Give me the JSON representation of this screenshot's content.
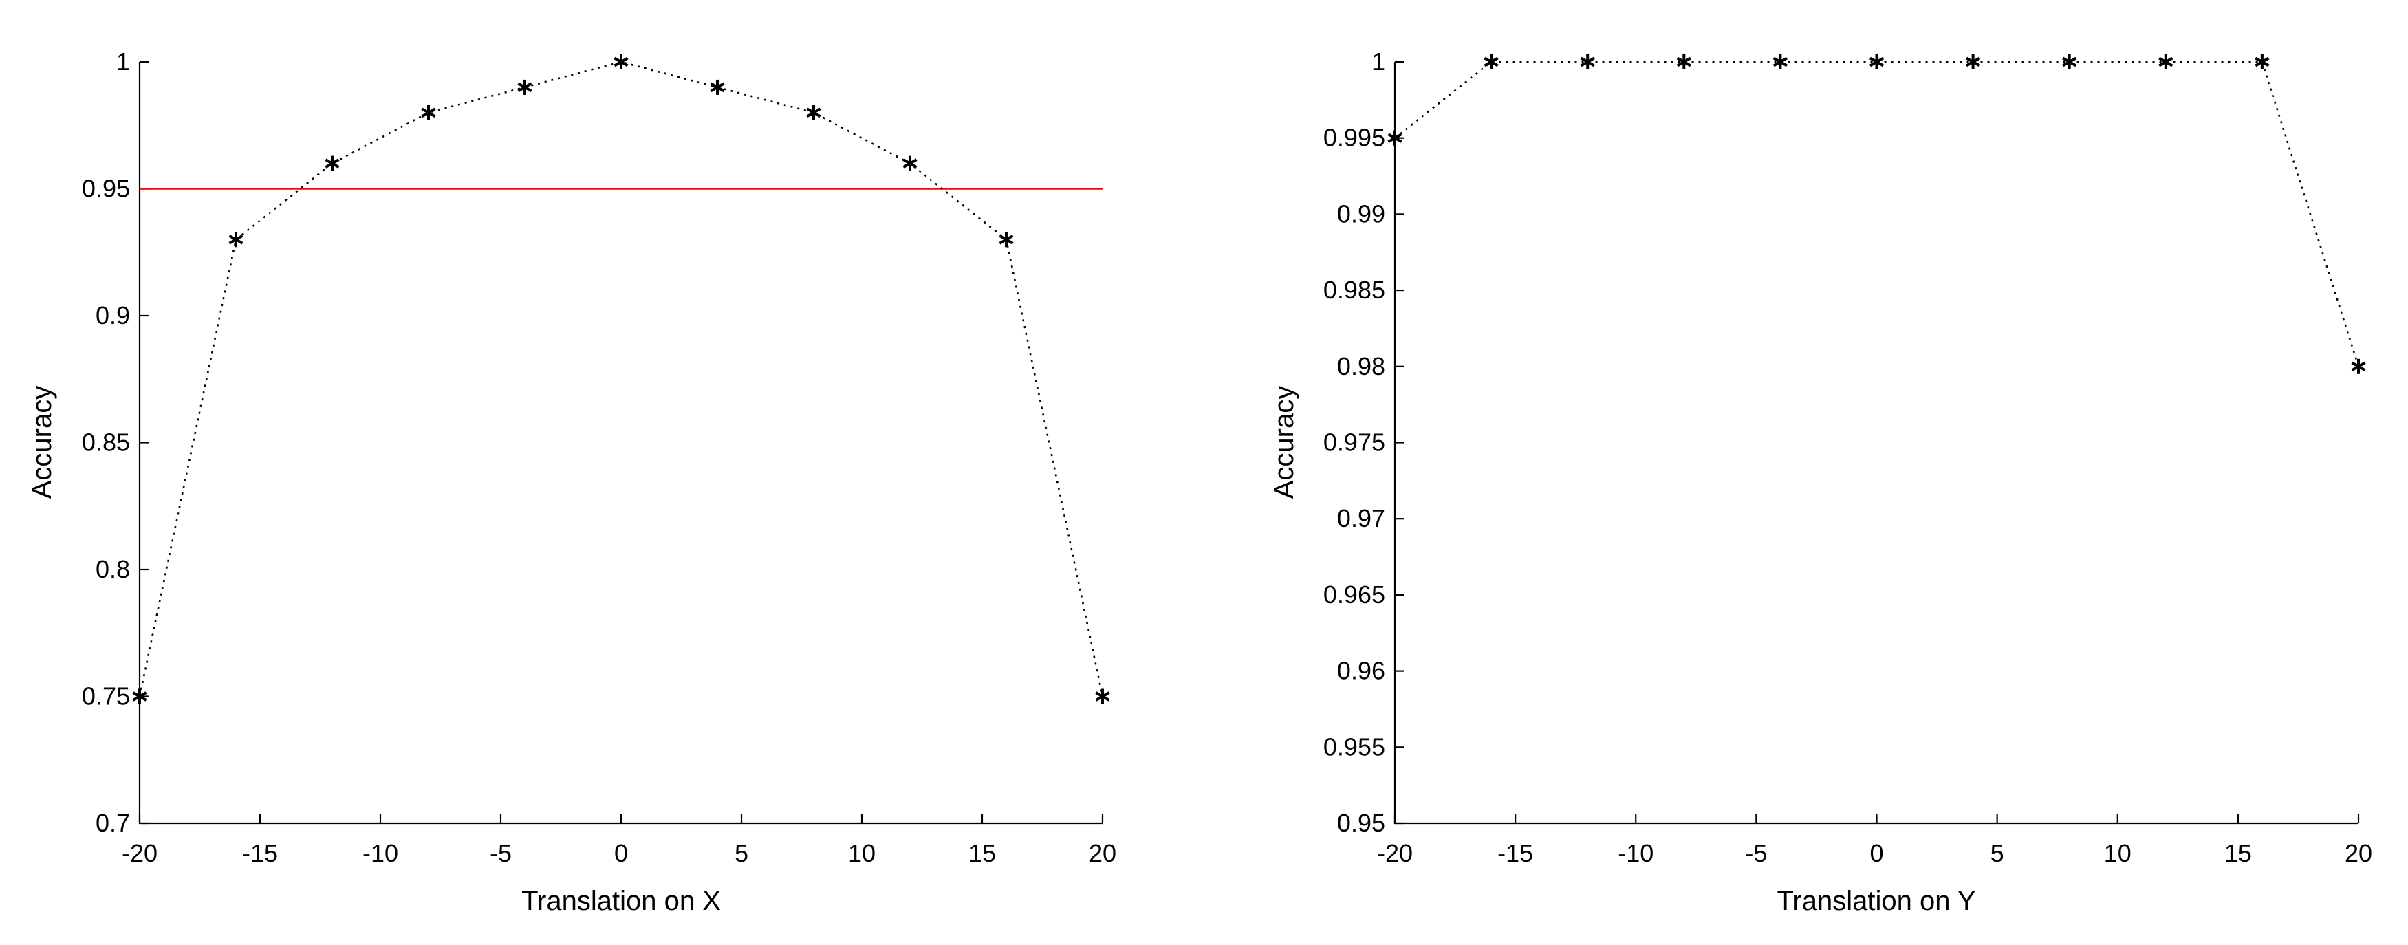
{
  "chart_data": [
    {
      "type": "line",
      "xlabel": "Translation on X",
      "ylabel": "Accuracy",
      "xlim": [
        -20,
        20
      ],
      "ylim": [
        0.7,
        1
      ],
      "x_ticks": [
        -20,
        -15,
        -10,
        -5,
        0,
        5,
        10,
        15,
        20
      ],
      "x_tick_labels": [
        "-20",
        "-15",
        "-10",
        "-5",
        "0",
        "5",
        "10",
        "15",
        "20"
      ],
      "y_ticks": [
        0.7,
        0.75,
        0.8,
        0.85,
        0.9,
        0.95,
        1
      ],
      "y_tick_labels": [
        "0.7",
        "0.75",
        "0.8",
        "0.85",
        "0.9",
        "0.95",
        "1"
      ],
      "grid": false,
      "series": [
        {
          "x": [
            -20,
            -16,
            -12,
            -8,
            -4,
            0,
            4,
            8,
            12,
            16,
            20
          ],
          "y": [
            0.75,
            0.93,
            0.96,
            0.98,
            0.99,
            1.0,
            0.99,
            0.98,
            0.96,
            0.93,
            0.75
          ],
          "color": "#000000",
          "line_style": "dotted",
          "marker": "asterisk"
        }
      ],
      "reference_lines": [
        {
          "orientation": "horizontal",
          "y": 0.95,
          "color": "#ff0000"
        }
      ]
    },
    {
      "type": "line",
      "xlabel": "Translation on Y",
      "ylabel": "Accuracy",
      "xlim": [
        -20,
        20
      ],
      "ylim": [
        0.95,
        1
      ],
      "x_ticks": [
        -20,
        -15,
        -10,
        -5,
        0,
        5,
        10,
        15,
        20
      ],
      "x_tick_labels": [
        "-20",
        "-15",
        "-10",
        "-5",
        "0",
        "5",
        "10",
        "15",
        "20"
      ],
      "y_ticks": [
        0.95,
        0.955,
        0.96,
        0.965,
        0.97,
        0.975,
        0.98,
        0.985,
        0.99,
        0.995,
        1
      ],
      "y_tick_labels": [
        "0.95",
        "0.955",
        "0.96",
        "0.965",
        "0.97",
        "0.975",
        "0.98",
        "0.985",
        "0.99",
        "0.995",
        "1"
      ],
      "grid": false,
      "series": [
        {
          "x": [
            -20,
            -16,
            -12,
            -8,
            -4,
            0,
            4,
            8,
            12,
            16,
            20
          ],
          "y": [
            0.995,
            1.0,
            1.0,
            1.0,
            1.0,
            1.0,
            1.0,
            1.0,
            1.0,
            1.0,
            0.98
          ],
          "color": "#000000",
          "line_style": "dotted",
          "marker": "asterisk"
        }
      ],
      "reference_lines": []
    }
  ]
}
